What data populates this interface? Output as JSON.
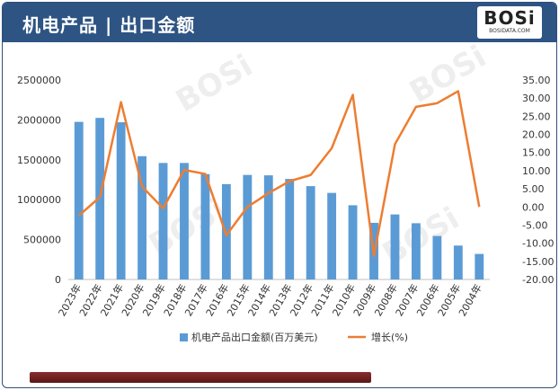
{
  "header": {
    "title": "机电产品 | 出口金额",
    "logo_text": "BOSi",
    "logo_sub": "BOSIDATA.COM"
  },
  "colors": {
    "bar": "#5b9bd5",
    "line": "#ed7d31",
    "header_bg": "#2e5483",
    "footer_bar": "#7a2424"
  },
  "chart_data": {
    "type": "bar",
    "categories": [
      "2023年",
      "2022年",
      "2021年",
      "2020年",
      "2019年",
      "2018年",
      "2017年",
      "2016年",
      "2015年",
      "2014年",
      "2013年",
      "2012年",
      "2011年",
      "2010年",
      "2009年",
      "2008年",
      "2007年",
      "2006年",
      "2005年",
      "2004年"
    ],
    "series": [
      {
        "name": "机电产品出口金额(百万美元)",
        "type": "bar",
        "axis": "left",
        "values": [
          1975000,
          2025000,
          1970000,
          1545000,
          1460000,
          1460000,
          1320000,
          1195000,
          1310000,
          1305000,
          1260000,
          1170000,
          1085000,
          930000,
          710000,
          815000,
          705000,
          545000,
          425000,
          320000
        ]
      },
      {
        "name": "增长(%)",
        "type": "line",
        "axis": "right",
        "values": [
          -2.4,
          2.7,
          28.9,
          5.6,
          -0.4,
          10.2,
          9.1,
          -7.8,
          0.0,
          3.8,
          7.1,
          8.8,
          16.2,
          30.9,
          -13.5,
          17.3,
          27.6,
          28.6,
          31.9,
          0.0
        ]
      }
    ],
    "y_left": {
      "ylim": [
        0,
        2500000
      ],
      "ticks": [
        "0",
        "500000",
        "1000000",
        "1500000",
        "2000000",
        "2500000"
      ]
    },
    "y_right": {
      "ylim": [
        -20,
        35
      ],
      "ticks": [
        "35.00",
        "30.00",
        "25.00",
        "20.00",
        "15.00",
        "10.00",
        "5.00",
        "0.00",
        "-5.00",
        "-10.00",
        "-15.00",
        "-20.00"
      ]
    },
    "legend": [
      "机电产品出口金额(百万美元)",
      "增长(%)"
    ],
    "legend_position": "bottom",
    "grid": false
  }
}
